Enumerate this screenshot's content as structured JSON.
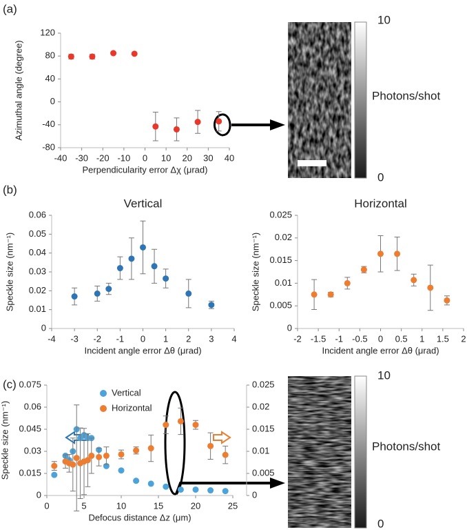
{
  "chart_data": [
    {
      "type": "scatter",
      "panel_label": "(a)",
      "xlabel": "Perpendicularity error Δχ (μrad)",
      "ylabel": "Azimuthal angle (degree)",
      "xlim": [
        -40,
        40
      ],
      "xticks": [
        -40,
        -30,
        -20,
        -10,
        0,
        10,
        20,
        30,
        40
      ],
      "ylim": [
        -80,
        120
      ],
      "yticks": [
        -80,
        -40,
        0,
        40,
        80,
        120
      ],
      "series": [
        {
          "color": "#e8382b",
          "x": [
            -35,
            -25,
            -15,
            -5,
            5,
            15,
            25,
            35
          ],
          "values": [
            79,
            79,
            85,
            84,
            -43,
            -48,
            -35,
            -34
          ],
          "errors": [
            4,
            4,
            2,
            2,
            25,
            20,
            20,
            17
          ]
        }
      ],
      "colorbar": {
        "label": "Photons/shot",
        "ticks": [
          0,
          10
        ]
      }
    },
    {
      "type": "scatter",
      "panel_label": "(b)",
      "title": "Vertical",
      "xlabel": "Incident angle error Δθ (μrad)",
      "ylabel": "Speckle size (nm⁻¹)",
      "xlim": [
        -4,
        4
      ],
      "xticks": [
        -4,
        -3,
        -2,
        -1,
        0,
        1,
        2,
        3,
        4
      ],
      "ylim": [
        0,
        0.06
      ],
      "yticks": [
        0,
        0.01,
        0.02,
        0.03,
        0.04,
        0.05,
        0.06
      ],
      "series": [
        {
          "color": "#2e75b6",
          "x": [
            -3,
            -2,
            -1.5,
            -1,
            -0.5,
            0,
            0.5,
            1,
            2,
            3
          ],
          "values": [
            0.017,
            0.0185,
            0.021,
            0.032,
            0.037,
            0.043,
            0.033,
            0.0265,
            0.0185,
            0.0125
          ],
          "errors": [
            0.0045,
            0.004,
            0.003,
            0.006,
            0.011,
            0.014,
            0.009,
            0.005,
            0.0075,
            0.002
          ]
        }
      ]
    },
    {
      "type": "scatter",
      "title": "Horizontal",
      "xlabel": "Incident angle error Δθ (μrad)",
      "ylabel": "Speckle size (nm⁻¹)",
      "xlim": [
        -2,
        2
      ],
      "xticks": [
        -2,
        -1.5,
        -1,
        -0.5,
        0,
        0.5,
        1,
        1.5,
        2
      ],
      "ylim": [
        0,
        0.025
      ],
      "yticks": [
        0,
        0.005,
        0.01,
        0.015,
        0.02,
        0.025
      ],
      "series": [
        {
          "color": "#ed7d31",
          "x": [
            -1.6,
            -1.2,
            -0.8,
            -0.4,
            0,
            0.4,
            0.8,
            1.2,
            1.6
          ],
          "values": [
            0.0075,
            0.0075,
            0.01,
            0.013,
            0.0165,
            0.0165,
            0.0107,
            0.009,
            0.0062
          ],
          "errors": [
            0.0033,
            0.0005,
            0.0013,
            0.0007,
            0.004,
            0.0037,
            0.0013,
            0.005,
            0.001
          ]
        }
      ]
    },
    {
      "type": "scatter",
      "panel_label": "(c)",
      "xlabel": "Defocus distance Δz (μm)",
      "ylabel": "Speckle size (nm⁻¹)",
      "xlim": [
        0,
        25
      ],
      "xticks": [
        0,
        5,
        10,
        15,
        20,
        25
      ],
      "ylim": [
        0,
        0.075
      ],
      "yticks": [
        0,
        0.015,
        0.03,
        0.045,
        0.06,
        0.075
      ],
      "y2lim": [
        0,
        0.025
      ],
      "y2ticks": [
        0,
        0.005,
        0.01,
        0.015,
        0.02,
        0.025
      ],
      "series": [
        {
          "name": "Vertical",
          "color": "#4ba3d9",
          "x": [
            1,
            2.5,
            3,
            3.5,
            4,
            4.5,
            5,
            5.5,
            6,
            7,
            8,
            10,
            12,
            14,
            16,
            18,
            20,
            22,
            24
          ],
          "values": [
            0.014,
            0.027,
            0.024,
            0.03,
            0.045,
            0.039,
            0.041,
            0.039,
            0.039,
            0.031,
            0.02,
            0.017,
            0.01,
            0.008,
            0.006,
            0.004,
            0.004,
            0.0035,
            0.003
          ]
        },
        {
          "name": "Horizontal",
          "color": "#ed7d31",
          "axis": "y2",
          "x": [
            1,
            2.5,
            3,
            3.5,
            4,
            4.5,
            5,
            5.5,
            6,
            7,
            8,
            10,
            12,
            14,
            16,
            18,
            20,
            22,
            24
          ],
          "values": [
            0.0067,
            0.0077,
            0.0073,
            0.007,
            0.0085,
            0.0073,
            0.0077,
            0.008,
            0.009,
            0.0087,
            0.009,
            0.0093,
            0.0102,
            0.0107,
            0.016,
            0.0168,
            0.016,
            0.0112,
            0.0092
          ],
          "errors": [
            0.001,
            0.0015,
            0.002,
            0.006,
            0.012,
            0.008,
            0.0075,
            0.006,
            0.004,
            0.002,
            0.002,
            0.001,
            0.0008,
            0.003,
            0.002,
            0.003,
            0.001,
            0.003,
            0.002
          ]
        }
      ],
      "colorbar": {
        "label": "Photons/shot",
        "ticks": [
          0,
          10
        ]
      }
    }
  ]
}
